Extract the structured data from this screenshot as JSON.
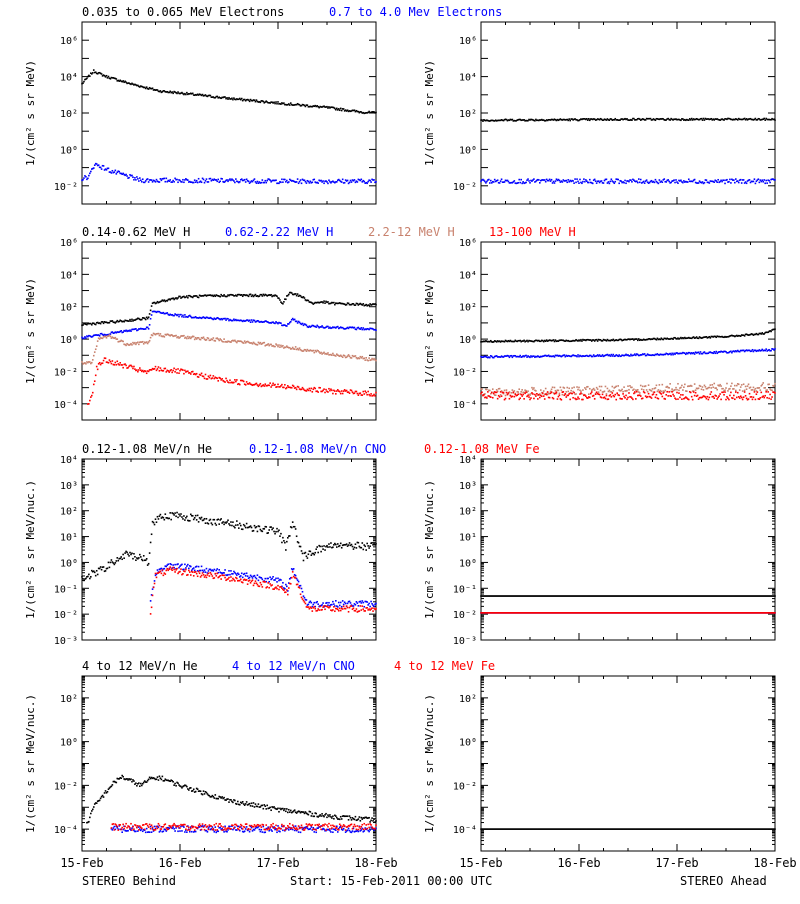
{
  "colors": {
    "black": "#000000",
    "blue": "#0000ff",
    "tan": "#c8826e",
    "red": "#ff0000"
  },
  "footer": {
    "left": "STEREO Behind",
    "center": "Start: 15-Feb-2011 00:00 UTC",
    "right": "STEREO Ahead"
  },
  "x_ticks": [
    "15-Feb",
    "16-Feb",
    "17-Feb",
    "18-Feb"
  ],
  "x_range_days": [
    0,
    3
  ],
  "chart_data": [
    {
      "type": "scatter",
      "log_y": true,
      "ylabel": "1/(cm² s sr MeV)",
      "ylim_exp": [
        -3,
        7
      ],
      "y_tick_exps": [
        -2,
        0,
        2,
        4,
        6
      ],
      "y_tick_labels": [
        "10⁻²",
        "10⁰",
        "10²",
        "10⁴",
        "10⁶"
      ],
      "labels": [
        {
          "text": "0.035 to 0.065 MeV Electrons",
          "color": "#000000"
        },
        {
          "text": "0.7 to 4.0 Mev Electrons",
          "color": "#0000ff"
        }
      ],
      "behind": [
        {
          "name": "0.035 to 0.065 MeV Electrons",
          "color": "#000000",
          "scatter": 0.06,
          "points": [
            [
              0,
              3.6
            ],
            [
              0.05,
              3.9
            ],
            [
              0.12,
              4.3
            ],
            [
              0.25,
              4.0
            ],
            [
              0.5,
              3.6
            ],
            [
              0.8,
              3.2
            ],
            [
              1.0,
              3.1
            ],
            [
              1.5,
              2.8
            ],
            [
              2.0,
              2.55
            ],
            [
              2.5,
              2.3
            ],
            [
              2.85,
              2.05
            ],
            [
              3.0,
              2.0
            ]
          ]
        },
        {
          "name": "0.7 to 4.0 Mev Electrons",
          "color": "#0000ff",
          "scatter": 0.12,
          "points": [
            [
              0,
              -1.6
            ],
            [
              0.07,
              -1.5
            ],
            [
              0.13,
              -0.8
            ],
            [
              0.3,
              -1.2
            ],
            [
              0.6,
              -1.7
            ],
            [
              1.0,
              -1.7
            ],
            [
              2.0,
              -1.75
            ],
            [
              3.0,
              -1.75
            ]
          ]
        }
      ],
      "ahead": [
        {
          "name": "0.035 to 0.065 MeV Electrons",
          "color": "#000000",
          "scatter": 0.05,
          "points": [
            [
              0,
              1.6
            ],
            [
              1.5,
              1.65
            ],
            [
              3.0,
              1.65
            ]
          ]
        },
        {
          "name": "0.7 to 4.0 Mev Electrons",
          "color": "#0000ff",
          "scatter": 0.12,
          "points": [
            [
              0,
              -1.75
            ],
            [
              3.0,
              -1.75
            ]
          ]
        }
      ]
    },
    {
      "type": "scatter",
      "log_y": true,
      "ylabel": "1/(cm² s sr MeV)",
      "ylim_exp": [
        -5,
        6
      ],
      "y_tick_exps": [
        -4,
        -2,
        0,
        2,
        4,
        6
      ],
      "y_tick_labels": [
        "10⁻⁴",
        "10⁻²",
        "10⁰",
        "10²",
        "10⁴",
        "10⁶"
      ],
      "labels": [
        {
          "text": "0.14-0.62 MeV H",
          "color": "#000000"
        },
        {
          "text": "0.62-2.22 MeV H",
          "color": "#0000ff"
        },
        {
          "text": "2.2-12 MeV H",
          "color": "#c8826e"
        },
        {
          "text": "13-100 MeV H",
          "color": "#ff0000"
        }
      ],
      "behind": [
        {
          "name": "0.14-0.62 MeV H",
          "color": "#000000",
          "scatter": 0.07,
          "points": [
            [
              0,
              0.9
            ],
            [
              0.4,
              1.1
            ],
            [
              0.68,
              1.3
            ],
            [
              0.72,
              2.2
            ],
            [
              1.0,
              2.6
            ],
            [
              1.5,
              2.7
            ],
            [
              1.98,
              2.7
            ],
            [
              2.05,
              2.2
            ],
            [
              2.12,
              2.9
            ],
            [
              2.25,
              2.6
            ],
            [
              2.35,
              2.2
            ],
            [
              2.45,
              2.3
            ],
            [
              2.55,
              2.2
            ],
            [
              3.0,
              2.1
            ]
          ]
        },
        {
          "name": "0.62-2.22 MeV H",
          "color": "#0000ff",
          "scatter": 0.07,
          "points": [
            [
              0,
              0.1
            ],
            [
              0.35,
              0.4
            ],
            [
              0.68,
              0.7
            ],
            [
              0.72,
              1.7
            ],
            [
              1.0,
              1.45
            ],
            [
              1.5,
              1.2
            ],
            [
              2.0,
              1.0
            ],
            [
              2.08,
              0.8
            ],
            [
              2.15,
              1.2
            ],
            [
              2.3,
              0.8
            ],
            [
              2.5,
              0.75
            ],
            [
              3.0,
              0.6
            ]
          ]
        },
        {
          "name": "2.2-12 MeV H",
          "color": "#c8826e",
          "scatter": 0.1,
          "points": [
            [
              0,
              -1.5
            ],
            [
              0.1,
              -1.5
            ],
            [
              0.17,
              0.0
            ],
            [
              0.28,
              0.2
            ],
            [
              0.45,
              -0.3
            ],
            [
              0.68,
              -0.2
            ],
            [
              0.72,
              0.3
            ],
            [
              1.0,
              0.15
            ],
            [
              1.5,
              -0.1
            ],
            [
              2.0,
              -0.4
            ],
            [
              2.5,
              -0.9
            ],
            [
              3.0,
              -1.3
            ]
          ]
        },
        {
          "name": "13-100 MeV H",
          "color": "#ff0000",
          "scatter": 0.15,
          "points": [
            [
              0.06,
              -4.0
            ],
            [
              0.1,
              -3.5
            ],
            [
              0.15,
              -1.8
            ],
            [
              0.22,
              -1.3
            ],
            [
              0.35,
              -1.5
            ],
            [
              0.68,
              -2.1
            ],
            [
              0.72,
              -1.8
            ],
            [
              1.0,
              -2.0
            ],
            [
              1.5,
              -2.6
            ],
            [
              2.0,
              -2.9
            ],
            [
              2.5,
              -3.2
            ],
            [
              3.0,
              -3.4
            ]
          ]
        }
      ],
      "ahead": [
        {
          "name": "0.14-0.62 MeV H",
          "color": "#000000",
          "scatter": 0.05,
          "points": [
            [
              0,
              -0.15
            ],
            [
              1.5,
              -0.05
            ],
            [
              2.5,
              0.15
            ],
            [
              2.9,
              0.35
            ],
            [
              3.0,
              0.6
            ]
          ]
        },
        {
          "name": "0.62-2.22 MeV H",
          "color": "#0000ff",
          "scatter": 0.06,
          "points": [
            [
              0,
              -1.1
            ],
            [
              1.5,
              -1.0
            ],
            [
              2.5,
              -0.8
            ],
            [
              3.0,
              -0.65
            ]
          ]
        },
        {
          "name": "2.2-12 MeV H",
          "color": "#c8826e",
          "scatter": 0.25,
          "points": [
            [
              0,
              -3.3
            ],
            [
              1.0,
              -3.2
            ],
            [
              2.0,
              -3.0
            ],
            [
              3.0,
              -2.95
            ]
          ]
        },
        {
          "name": "13-100 MeV H",
          "color": "#ff0000",
          "scatter": 0.25,
          "points": [
            [
              0,
              -3.5
            ],
            [
              1.5,
              -3.5
            ],
            [
              3.0,
              -3.5
            ]
          ]
        }
      ]
    },
    {
      "type": "scatter",
      "log_y": true,
      "ylabel": "1/(cm² s sr MeV/nuc.)",
      "ylim_exp": [
        -3,
        4
      ],
      "y_tick_exps": [
        -3,
        -2,
        -1,
        0,
        1,
        2,
        3,
        4
      ],
      "y_tick_labels": [
        "10⁻³",
        "10⁻²",
        "10⁻¹",
        "10⁰",
        "10¹",
        "10²",
        "10³",
        "10⁴"
      ],
      "labels": [
        {
          "text": "0.12-1.08 MeV/n He",
          "color": "#000000"
        },
        {
          "text": "0.12-1.08 MeV/n CNO",
          "color": "#0000ff"
        },
        {
          "text": "0.12-1.08 MeV Fe",
          "color": "#ff0000"
        }
      ],
      "behind": [
        {
          "name": "0.12-1.08 MeV/n He",
          "color": "#000000",
          "scatter": 0.15,
          "points": [
            [
              0,
              -0.6
            ],
            [
              0.15,
              -0.4
            ],
            [
              0.3,
              -0.05
            ],
            [
              0.45,
              0.3
            ],
            [
              0.6,
              0.2
            ],
            [
              0.68,
              0.0
            ],
            [
              0.72,
              1.5
            ],
            [
              0.8,
              1.8
            ],
            [
              1.0,
              1.8
            ],
            [
              1.5,
              1.5
            ],
            [
              2.0,
              1.2
            ],
            [
              2.08,
              0.6
            ],
            [
              2.15,
              1.6
            ],
            [
              2.25,
              0.2
            ],
            [
              2.4,
              0.5
            ],
            [
              2.6,
              0.7
            ],
            [
              3.0,
              0.6
            ]
          ]
        },
        {
          "name": "0.12-1.08 MeV/n CNO",
          "color": "#0000ff",
          "scatter": 0.12,
          "points": [
            [
              0.7,
              -1.6
            ],
            [
              0.75,
              -0.4
            ],
            [
              0.9,
              -0.1
            ],
            [
              1.0,
              -0.15
            ],
            [
              1.5,
              -0.4
            ],
            [
              2.0,
              -0.7
            ],
            [
              2.1,
              -1.0
            ],
            [
              2.15,
              -0.2
            ],
            [
              2.3,
              -1.6
            ],
            [
              3.0,
              -1.6
            ]
          ]
        },
        {
          "name": "0.12-1.08 MeV Fe",
          "color": "#ff0000",
          "scatter": 0.12,
          "points": [
            [
              0.7,
              -1.9
            ],
            [
              0.75,
              -0.5
            ],
            [
              0.9,
              -0.3
            ],
            [
              1.0,
              -0.35
            ],
            [
              1.5,
              -0.6
            ],
            [
              2.0,
              -0.95
            ],
            [
              2.1,
              -1.2
            ],
            [
              2.15,
              -0.4
            ],
            [
              2.3,
              -1.8
            ],
            [
              3.0,
              -1.8
            ]
          ]
        }
      ],
      "ahead": [
        {
          "name": "0.12-1.08 MeV/n He",
          "color": "#000000",
          "scatter": 0.0,
          "points": [
            [
              0,
              -1.3
            ],
            [
              3.0,
              -1.3
            ]
          ]
        },
        {
          "name": "0.12-1.08 MeV/n CNO",
          "color": "#0000ff",
          "scatter": 0.0,
          "points": [
            [
              0,
              -1.95
            ],
            [
              3.0,
              -1.95
            ]
          ]
        },
        {
          "name": "0.12-1.08 MeV Fe",
          "color": "#ff0000",
          "scatter": 0.0,
          "points": [
            [
              0,
              -1.95
            ],
            [
              3.0,
              -1.95
            ]
          ]
        }
      ]
    },
    {
      "type": "scatter",
      "log_y": true,
      "ylabel": "1/(cm² s sr MeV/nuc.)",
      "ylim_exp": [
        -5,
        3
      ],
      "y_tick_exps": [
        -4,
        -2,
        0,
        2
      ],
      "y_tick_labels": [
        "10⁻⁴",
        "10⁻²",
        "10⁰",
        "10²"
      ],
      "labels": [
        {
          "text": "4 to 12 MeV/n He",
          "color": "#000000"
        },
        {
          "text": "4 to 12 MeV/n CNO",
          "color": "#0000ff"
        },
        {
          "text": "4 to 12 MeV Fe",
          "color": "#ff0000"
        }
      ],
      "behind": [
        {
          "name": "4 to 12 MeV/n He",
          "color": "#000000",
          "scatter": 0.1,
          "points": [
            [
              0.05,
              -3.8
            ],
            [
              0.12,
              -3.0
            ],
            [
              0.3,
              -2.0
            ],
            [
              0.4,
              -1.6
            ],
            [
              0.6,
              -2.0
            ],
            [
              0.7,
              -1.7
            ],
            [
              0.8,
              -1.65
            ],
            [
              1.0,
              -2.0
            ],
            [
              1.5,
              -2.7
            ],
            [
              2.0,
              -3.1
            ],
            [
              2.5,
              -3.4
            ],
            [
              3.0,
              -3.6
            ]
          ]
        },
        {
          "name": "4 to 12 MeV/n CNO",
          "color": "#0000ff",
          "scatter": 0.15,
          "points": [
            [
              0.3,
              -4.0
            ],
            [
              1.0,
              -4.0
            ],
            [
              3.0,
              -4.0
            ]
          ]
        },
        {
          "name": "4 to 12 MeV Fe",
          "color": "#ff0000",
          "scatter": 0.15,
          "points": [
            [
              0.3,
              -3.9
            ],
            [
              1.0,
              -3.9
            ],
            [
              3.0,
              -3.9
            ]
          ]
        }
      ],
      "ahead": [
        {
          "name": "4 to 12 MeV/n He",
          "color": "#000000",
          "scatter": 0.0,
          "points": [
            [
              0,
              -4.0
            ],
            [
              3.0,
              -4.0
            ]
          ]
        }
      ]
    }
  ]
}
